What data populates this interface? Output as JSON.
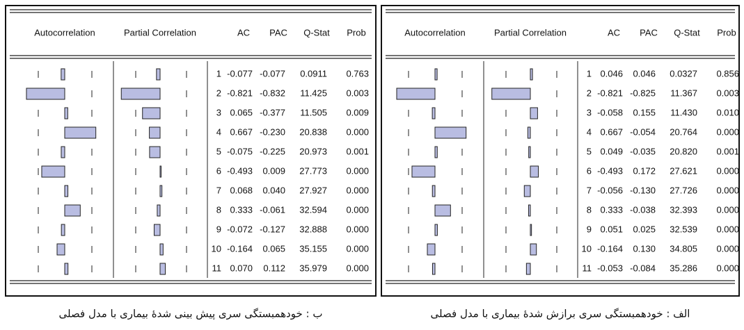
{
  "panels": [
    {
      "caption": "ب : خودهمبستگی سری پیش بینی شدهٔ بیماری با مدل فصلی",
      "headers": [
        "Autocorrelation",
        "Partial Correlation",
        "AC",
        "PAC",
        "Q-Stat",
        "Prob"
      ],
      "rows": [
        [
          "1",
          "-0.077",
          "-0.077",
          "0.0911",
          "0.763"
        ],
        [
          "2",
          "-0.821",
          "-0.832",
          "11.425",
          "0.003"
        ],
        [
          "3",
          "0.065",
          "-0.377",
          "11.505",
          "0.009"
        ],
        [
          "4",
          "0.667",
          "-0.230",
          "20.838",
          "0.000"
        ],
        [
          "5",
          "-0.075",
          "-0.225",
          "20.973",
          "0.001"
        ],
        [
          "6",
          "-0.493",
          "0.009",
          "27.773",
          "0.000"
        ],
        [
          "7",
          "0.068",
          "0.040",
          "27.927",
          "0.000"
        ],
        [
          "8",
          "0.333",
          "-0.061",
          "32.594",
          "0.000"
        ],
        [
          "9",
          "-0.072",
          "-0.127",
          "32.888",
          "0.000"
        ],
        [
          "10",
          "-0.164",
          "0.065",
          "35.155",
          "0.000"
        ],
        [
          "11",
          "0.070",
          "0.112",
          "35.979",
          "0.000"
        ]
      ]
    },
    {
      "caption": "الف : خودهمبستگی سری برازش شدهٔ بیماری با مدل فصلی",
      "headers": [
        "Autocorrelation",
        "Partial Correlation",
        "AC",
        "PAC",
        "Q-Stat",
        "Prob"
      ],
      "rows": [
        [
          "1",
          "0.046",
          "0.046",
          "0.0327",
          "0.856"
        ],
        [
          "2",
          "-0.821",
          "-0.825",
          "11.367",
          "0.003"
        ],
        [
          "3",
          "-0.058",
          "0.155",
          "11.430",
          "0.010"
        ],
        [
          "4",
          "0.667",
          "-0.054",
          "20.764",
          "0.000"
        ],
        [
          "5",
          "0.049",
          "-0.035",
          "20.820",
          "0.001"
        ],
        [
          "6",
          "-0.493",
          "0.172",
          "27.621",
          "0.000"
        ],
        [
          "7",
          "-0.056",
          "-0.130",
          "27.726",
          "0.000"
        ],
        [
          "8",
          "0.333",
          "-0.038",
          "32.393",
          "0.000"
        ],
        [
          "9",
          "0.051",
          "0.025",
          "32.539",
          "0.000"
        ],
        [
          "10",
          "-0.164",
          "0.130",
          "34.805",
          "0.000"
        ],
        [
          "11",
          "-0.053",
          "-0.084",
          "35.286",
          "0.000"
        ]
      ]
    }
  ]
}
